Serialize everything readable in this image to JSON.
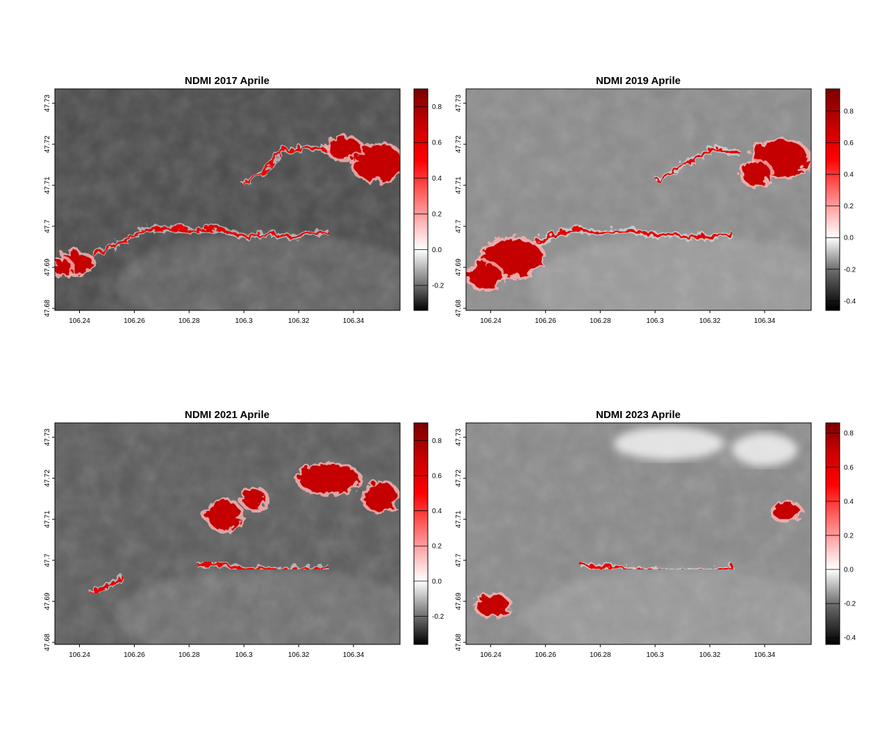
{
  "chart_data": [
    {
      "type": "heatmap",
      "title": "NDMI 2017 Aprile",
      "xlabel": "",
      "ylabel": "",
      "x_ticks": [
        106.24,
        106.26,
        106.28,
        106.3,
        106.32,
        106.34
      ],
      "x_tick_labels": [
        "106.24",
        "106.26",
        "106.28",
        "106.3",
        "106.32",
        "106.34"
      ],
      "y_ticks": [
        47.68,
        47.69,
        47.7,
        47.71,
        47.72,
        47.73
      ],
      "y_tick_labels": [
        "47.68",
        "47.69",
        "47.7",
        "47.71",
        "47.72",
        "47.73"
      ],
      "xlim": [
        106.231,
        106.357
      ],
      "ylim": [
        47.6795,
        47.7335
      ],
      "legend": {
        "position": "right",
        "range": [
          -0.34,
          0.9
        ],
        "ticks": [
          -0.2,
          0.0,
          0.2,
          0.4,
          0.6,
          0.8
        ],
        "tick_labels": [
          "-0.2",
          "0.0",
          "0.2",
          "0.4",
          "0.6",
          "0.8"
        ]
      },
      "background_tone": "#4b4b4b",
      "high_regions": [
        {
          "cx": 106.348,
          "cy": 47.716,
          "rx": 0.009,
          "ry": 0.0045
        },
        {
          "cx": 106.336,
          "cy": 47.7195,
          "rx": 0.006,
          "ry": 0.0025
        },
        {
          "cx": 106.238,
          "cy": 47.6915,
          "rx": 0.006,
          "ry": 0.0025
        },
        {
          "cx": 106.233,
          "cy": 47.6905,
          "rx": 0.003,
          "ry": 0.002
        }
      ],
      "high_channels": [
        {
          "points": [
            [
              106.232,
              47.689
            ],
            [
              106.243,
              47.693
            ],
            [
              106.252,
              47.696
            ],
            [
              106.263,
              47.7
            ],
            [
              106.272,
              47.7
            ],
            [
              106.28,
              47.6995
            ],
            [
              106.29,
              47.7
            ],
            [
              106.3,
              47.698
            ],
            [
              106.31,
              47.6985
            ],
            [
              106.318,
              47.698
            ],
            [
              106.325,
              47.699
            ],
            [
              106.33,
              47.699
            ]
          ]
        },
        {
          "points": [
            [
              106.298,
              47.711
            ],
            [
              106.306,
              47.7135
            ],
            [
              106.312,
              47.7185
            ],
            [
              106.322,
              47.72
            ],
            [
              106.332,
              47.719
            ],
            [
              106.34,
              47.719
            ]
          ]
        }
      ]
    },
    {
      "type": "heatmap",
      "title": "NDMI 2019 Aprile",
      "xlabel": "",
      "ylabel": "",
      "x_ticks": [
        106.24,
        106.26,
        106.28,
        106.3,
        106.32,
        106.34
      ],
      "x_tick_labels": [
        "106.24",
        "106.26",
        "106.28",
        "106.3",
        "106.32",
        "106.34"
      ],
      "y_ticks": [
        47.68,
        47.69,
        47.7,
        47.71,
        47.72,
        47.73
      ],
      "y_tick_labels": [
        "47.68",
        "47.69",
        "47.7",
        "47.71",
        "47.72",
        "47.73"
      ],
      "xlim": [
        106.231,
        106.357
      ],
      "ylim": [
        47.6795,
        47.7335
      ],
      "legend": {
        "position": "right",
        "range": [
          -0.46,
          0.94
        ],
        "ticks": [
          -0.4,
          -0.2,
          0.0,
          0.2,
          0.4,
          0.6,
          0.8
        ],
        "tick_labels": [
          "-0.4",
          "-0.2",
          "0.0",
          "0.2",
          "0.4",
          "0.6",
          "0.8"
        ]
      },
      "background_tone": "#8c8c8c",
      "high_regions": [
        {
          "cx": 106.247,
          "cy": 47.693,
          "rx": 0.011,
          "ry": 0.0045
        },
        {
          "cx": 106.237,
          "cy": 47.6885,
          "rx": 0.006,
          "ry": 0.003
        },
        {
          "cx": 106.345,
          "cy": 47.717,
          "rx": 0.01,
          "ry": 0.0045
        },
        {
          "cx": 106.336,
          "cy": 47.7135,
          "rx": 0.005,
          "ry": 0.003
        }
      ],
      "high_channels": [
        {
          "points": [
            [
              106.252,
              47.6955
            ],
            [
              106.26,
              47.698
            ],
            [
              106.27,
              47.7
            ],
            [
              106.28,
              47.699
            ],
            [
              106.29,
              47.6995
            ],
            [
              106.3,
              47.6985
            ],
            [
              106.31,
              47.698
            ],
            [
              106.32,
              47.698
            ],
            [
              106.328,
              47.6985
            ]
          ]
        },
        {
          "points": [
            [
              106.3,
              47.7115
            ],
            [
              106.31,
              47.716
            ],
            [
              106.32,
              47.7195
            ],
            [
              106.33,
              47.7185
            ]
          ]
        }
      ]
    },
    {
      "type": "heatmap",
      "title": "NDMI 2021 Aprile",
      "xlabel": "",
      "ylabel": "",
      "x_ticks": [
        106.24,
        106.26,
        106.28,
        106.3,
        106.32,
        106.34
      ],
      "x_tick_labels": [
        "106.24",
        "106.26",
        "106.28",
        "106.3",
        "106.32",
        "106.34"
      ],
      "y_ticks": [
        47.68,
        47.69,
        47.7,
        47.71,
        47.72,
        47.73
      ],
      "y_tick_labels": [
        "47.68",
        "47.69",
        "47.7",
        "47.71",
        "47.72",
        "47.73"
      ],
      "xlim": [
        106.231,
        106.357
      ],
      "ylim": [
        47.6795,
        47.7335
      ],
      "legend": {
        "position": "right",
        "range": [
          -0.36,
          0.9
        ],
        "ticks": [
          -0.2,
          0.0,
          0.2,
          0.4,
          0.6,
          0.8
        ],
        "tick_labels": [
          "-0.2",
          "0.0",
          "0.2",
          "0.4",
          "0.6",
          "0.8"
        ]
      },
      "background_tone": "#5c5c5c",
      "high_regions": [
        {
          "cx": 106.33,
          "cy": 47.7205,
          "rx": 0.011,
          "ry": 0.0035
        },
        {
          "cx": 106.349,
          "cy": 47.716,
          "rx": 0.006,
          "ry": 0.0035
        },
        {
          "cx": 106.292,
          "cy": 47.7115,
          "rx": 0.006,
          "ry": 0.0035
        },
        {
          "cx": 106.303,
          "cy": 47.7155,
          "rx": 0.004,
          "ry": 0.0025
        }
      ],
      "high_channels": [
        {
          "points": [
            [
              106.282,
              47.6995
            ],
            [
              106.29,
              47.6995
            ],
            [
              106.3,
              47.6985
            ],
            [
              106.31,
              47.6985
            ],
            [
              106.32,
              47.698
            ],
            [
              106.33,
              47.699
            ]
          ]
        },
        {
          "points": [
            [
              106.243,
              47.6925
            ],
            [
              106.25,
              47.695
            ],
            [
              106.255,
              47.6965
            ]
          ]
        }
      ]
    },
    {
      "type": "heatmap",
      "title": "NDMI 2023 Aprile",
      "xlabel": "",
      "ylabel": "",
      "x_ticks": [
        106.24,
        106.26,
        106.28,
        106.3,
        106.32,
        106.34
      ],
      "x_tick_labels": [
        "106.24",
        "106.26",
        "106.28",
        "106.3",
        "106.32",
        "106.34"
      ],
      "y_ticks": [
        47.68,
        47.69,
        47.7,
        47.71,
        47.72,
        47.73
      ],
      "y_tick_labels": [
        "47.68",
        "47.69",
        "47.7",
        "47.71",
        "47.72",
        "47.73"
      ],
      "xlim": [
        106.231,
        106.357
      ],
      "ylim": [
        47.6795,
        47.7335
      ],
      "legend": {
        "position": "right",
        "range": [
          -0.44,
          0.86
        ],
        "ticks": [
          -0.4,
          -0.2,
          0.0,
          0.2,
          0.4,
          0.6,
          0.8
        ],
        "tick_labels": [
          "-0.4",
          "-0.2",
          "0.0",
          "0.2",
          "0.4",
          "0.6",
          "0.8"
        ]
      },
      "background_tone": "#8a8a8a",
      "high_regions": [
        {
          "cx": 106.24,
          "cy": 47.6895,
          "rx": 0.006,
          "ry": 0.0025
        },
        {
          "cx": 106.347,
          "cy": 47.7125,
          "rx": 0.005,
          "ry": 0.002
        }
      ],
      "high_channels": [
        {
          "points": [
            [
              106.272,
              47.6995
            ],
            [
              106.28,
              47.699
            ],
            [
              106.29,
              47.6985
            ],
            [
              106.3,
              47.698
            ],
            [
              106.31,
              47.698
            ],
            [
              106.32,
              47.698
            ],
            [
              106.328,
              47.699
            ]
          ]
        }
      ],
      "light_patches": [
        {
          "cx": 106.305,
          "cy": 47.7285,
          "rx": 0.02,
          "ry": 0.004
        },
        {
          "cx": 106.34,
          "cy": 47.727,
          "rx": 0.012,
          "ry": 0.004
        }
      ]
    }
  ]
}
